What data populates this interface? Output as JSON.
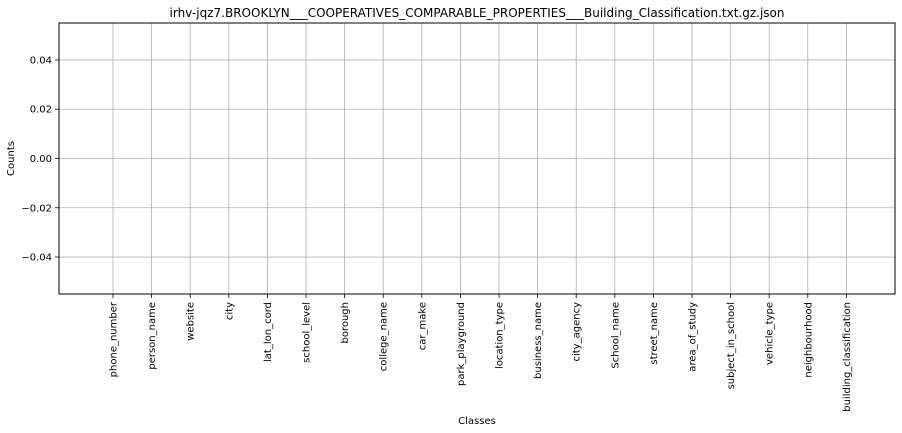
{
  "chart_data": {
    "type": "bar",
    "title": "irhv-jqz7.BROOKLYN___COOPERATIVES_COMPARABLE_PROPERTIES___Building_Classification.txt.gz.json",
    "xlabel": "Classes",
    "ylabel": "Counts",
    "categories": [
      "phone_number",
      "person_name",
      "website",
      "city",
      "lat_lon_cord",
      "school_level",
      "borough",
      "college_name",
      "car_make",
      "park_playground",
      "location_type",
      "business_name",
      "city_agency",
      "School_name",
      "street_name",
      "area_of_study",
      "subject_in_school",
      "vehicle_type",
      "neighbourhood",
      "building_classification"
    ],
    "values": [
      0,
      0,
      0,
      0,
      0,
      0,
      0,
      0,
      0,
      0,
      0,
      0,
      0,
      0,
      0,
      0,
      0,
      0,
      0,
      0
    ],
    "ylim": [
      -0.055,
      0.055
    ],
    "yticks": [
      -0.04,
      -0.02,
      0.0,
      0.02,
      0.04
    ],
    "ytick_labels": [
      "−0.04",
      "−0.02",
      "0.00",
      "0.02",
      "0.04"
    ],
    "grid": true,
    "grid_color": "#b0b0b0",
    "bar_color": "#1f77b4"
  }
}
